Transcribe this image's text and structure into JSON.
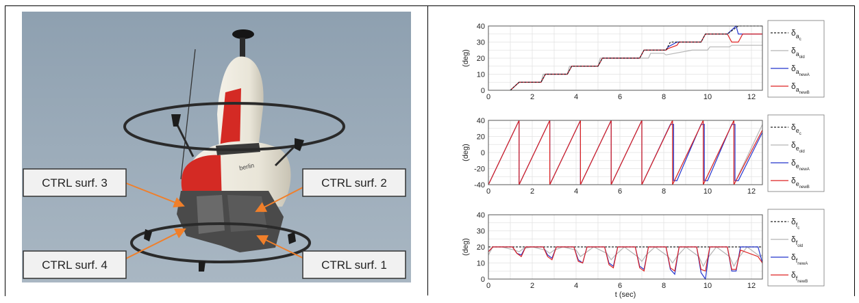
{
  "photo": {
    "callouts": [
      "CTRL surf. 3",
      "CTRL surf. 2",
      "CTRL surf. 4",
      "CTRL surf. 1"
    ],
    "logo_text": "berlin",
    "colors": {
      "sky": "#9aabb9",
      "body": "#ece8dc",
      "red": "#d42a24",
      "arrow": "#f07f2a",
      "callout_bg": "#f1f1f1"
    }
  },
  "chart_data": [
    {
      "type": "line",
      "ylabel": "(deg)",
      "xlim": [
        0,
        12.5
      ],
      "ylim": [
        0,
        40
      ],
      "xticks": [
        "0",
        "2",
        "4",
        "6",
        "8",
        "10",
        "12"
      ],
      "yticks": [
        "0",
        "10",
        "20",
        "30",
        "40"
      ],
      "grid": true,
      "legend_position": "right",
      "legend": [
        {
          "symbol": "δ",
          "sub": "a",
          "subsub": "c",
          "color": "#222222",
          "dash": "3,2"
        },
        {
          "symbol": "δ",
          "sub": "a",
          "subsub": "old",
          "color": "#b5b5b5",
          "dash": ""
        },
        {
          "symbol": "δ",
          "sub": "a",
          "subsub": "newA",
          "color": "#2233cc",
          "dash": ""
        },
        {
          "symbol": "δ",
          "sub": "a",
          "subsub": "newB",
          "color": "#dd2222",
          "dash": ""
        }
      ],
      "series": [
        {
          "color": "#b5b5b5",
          "x": [
            1,
            1.4,
            1.5,
            2.4,
            2.5,
            3.6,
            3.7,
            5,
            5.1,
            6,
            6.1,
            7.3,
            7.4,
            8,
            8.1,
            9.3,
            9.4,
            10,
            10.1,
            11,
            11.1,
            12.5
          ],
          "y": [
            0,
            5,
            5,
            5,
            10,
            10,
            15,
            15,
            20,
            20,
            20,
            20,
            23,
            23,
            22,
            25,
            25,
            25,
            27,
            27,
            28,
            28
          ]
        },
        {
          "color": "#2233cc",
          "x": [
            1,
            1.4,
            1.5,
            2.4,
            2.6,
            3.6,
            3.8,
            5,
            5.2,
            6.9,
            7.1,
            8.1,
            8.2,
            8.6,
            8.7,
            9.7,
            9.9,
            10.9,
            11.3,
            11.4,
            12.5
          ],
          "y": [
            0,
            5,
            5,
            5,
            10,
            10,
            15,
            15,
            20,
            20,
            25,
            25,
            27,
            30,
            30,
            30,
            35,
            35,
            40,
            35,
            35
          ]
        },
        {
          "color": "#dd2222",
          "x": [
            1,
            1.4,
            1.5,
            2.4,
            2.6,
            3.6,
            3.8,
            5,
            5.2,
            6.9,
            7.1,
            8.1,
            8.2,
            8.6,
            8.7,
            9.7,
            9.9,
            10.9,
            11.1,
            11.4,
            11.6,
            12.5
          ],
          "y": [
            0,
            5,
            5,
            5,
            10,
            10,
            15,
            15,
            20,
            20,
            25,
            25,
            26,
            28,
            30,
            30,
            35,
            35,
            30,
            30,
            35,
            35
          ]
        },
        {
          "color": "#222222",
          "dash": "3,2",
          "x": [
            1,
            1.4,
            1.5,
            2.4,
            2.6,
            3.6,
            3.8,
            5,
            5.2,
            6.9,
            7.1,
            8.1,
            8.3,
            9.7,
            9.9,
            10.9,
            11.4,
            12.5
          ],
          "y": [
            0,
            5,
            5,
            5,
            10,
            10,
            15,
            15,
            20,
            20,
            25,
            25,
            30,
            30,
            35,
            35,
            40,
            40
          ]
        }
      ]
    },
    {
      "type": "line",
      "ylabel": "(deg)",
      "xlim": [
        0,
        12.5
      ],
      "ylim": [
        -40,
        40
      ],
      "xticks": [
        "0",
        "2",
        "4",
        "6",
        "8",
        "10",
        "12"
      ],
      "yticks": [
        "-40",
        "-20",
        "0",
        "20",
        "40"
      ],
      "grid": true,
      "legend_position": "right",
      "legend": [
        {
          "symbol": "δ",
          "sub": "e",
          "subsub": "c",
          "color": "#222222",
          "dash": "3,2"
        },
        {
          "symbol": "δ",
          "sub": "e",
          "subsub": "old",
          "color": "#b5b5b5",
          "dash": ""
        },
        {
          "symbol": "δ",
          "sub": "e",
          "subsub": "newA",
          "color": "#2233cc",
          "dash": ""
        },
        {
          "symbol": "δ",
          "sub": "e",
          "subsub": "newB",
          "color": "#dd2222",
          "dash": ""
        }
      ],
      "series": [
        {
          "color": "#b5b5b5",
          "x": [
            0,
            1.4,
            1.4,
            2.8,
            2.8,
            4.2,
            4.2,
            5.6,
            5.6,
            7,
            7,
            8.4,
            8.4,
            9.8,
            9.8,
            11.2,
            11.2,
            12.5
          ],
          "y": [
            -40,
            40,
            -40,
            40,
            -40,
            40,
            -40,
            40,
            -40,
            40,
            -40,
            40,
            -40,
            40,
            -40,
            40,
            -40,
            35
          ]
        },
        {
          "color": "#2233cc",
          "x": [
            0,
            1.4,
            1.4,
            2.8,
            2.8,
            4.2,
            4.2,
            5.6,
            5.6,
            7,
            7,
            8.3,
            8.45,
            8.45,
            8.6,
            9.7,
            9.85,
            9.85,
            10,
            11.1,
            11.25,
            11.25,
            11.4,
            12.5
          ],
          "y": [
            -40,
            40,
            -40,
            40,
            -40,
            40,
            -40,
            40,
            -40,
            40,
            -40,
            35,
            35,
            -35,
            -35,
            35,
            35,
            -35,
            -35,
            35,
            35,
            -35,
            -35,
            25
          ]
        },
        {
          "color": "#dd2222",
          "x": [
            0,
            1.4,
            1.4,
            2.8,
            2.8,
            4.2,
            4.2,
            5.6,
            5.6,
            7,
            7,
            8.4,
            8.4,
            9.8,
            9.8,
            11.2,
            11.2,
            12.5
          ],
          "y": [
            -40,
            40,
            -40,
            40,
            -40,
            40,
            -40,
            40,
            -40,
            40,
            -40,
            40,
            -40,
            40,
            -40,
            40,
            -40,
            28
          ]
        }
      ]
    },
    {
      "type": "line",
      "ylabel": "(deg)",
      "xlabel": "t (sec)",
      "xlim": [
        0,
        12.5
      ],
      "ylim": [
        0,
        40
      ],
      "xticks": [
        "0",
        "2",
        "4",
        "6",
        "8",
        "10",
        "12"
      ],
      "yticks": [
        "0",
        "10",
        "20",
        "30",
        "40"
      ],
      "grid": true,
      "legend_position": "right",
      "legend": [
        {
          "symbol": "δ",
          "sub": "f",
          "subsub": "c",
          "color": "#222222",
          "dash": "3,2"
        },
        {
          "symbol": "δ",
          "sub": "f",
          "subsub": "old",
          "color": "#b5b5b5",
          "dash": ""
        },
        {
          "symbol": "δ",
          "sub": "f",
          "subsub": "newA",
          "color": "#2233cc",
          "dash": ""
        },
        {
          "symbol": "δ",
          "sub": "f",
          "subsub": "newB",
          "color": "#dd2222",
          "dash": ""
        }
      ],
      "series": [
        {
          "color": "#222222",
          "dash": "3,2",
          "x": [
            0,
            12.5
          ],
          "y": [
            20,
            20
          ]
        },
        {
          "color": "#b5b5b5",
          "x": [
            0,
            0.2,
            0.6,
            1.2,
            1.4,
            1.6,
            2,
            2.6,
            2.8,
            3,
            3.4,
            4,
            4.2,
            4.4,
            4.8,
            5.4,
            5.6,
            5.8,
            6.2,
            6.8,
            7,
            7.2,
            7.6,
            8.2,
            8.4,
            8.6,
            9,
            9.6,
            9.8,
            10,
            10.4,
            11,
            11.2,
            11.4,
            11.8,
            12.4,
            12.5
          ],
          "y": [
            15,
            20,
            20,
            18,
            17,
            19,
            20,
            18,
            16,
            18,
            20,
            18,
            14,
            16,
            20,
            16,
            12,
            15,
            20,
            14,
            11,
            15,
            20,
            14,
            10,
            14,
            20,
            14,
            8,
            13,
            20,
            14,
            8,
            13,
            20,
            14,
            15
          ]
        },
        {
          "color": "#2233cc",
          "x": [
            0,
            0.2,
            1.1,
            1.3,
            1.5,
            1.7,
            2.5,
            2.7,
            2.9,
            3.1,
            3.9,
            4.1,
            4.3,
            4.5,
            5.3,
            5.5,
            5.7,
            5.9,
            6.7,
            6.9,
            7.1,
            7.3,
            8.1,
            8.3,
            8.5,
            8.7,
            9.5,
            9.7,
            9.9,
            10.1,
            10.9,
            11.1,
            11.3,
            11.5,
            12.3,
            12.5
          ],
          "y": [
            17,
            20,
            20,
            16,
            15,
            20,
            20,
            15,
            13,
            20,
            20,
            12,
            10,
            20,
            20,
            10,
            8,
            20,
            20,
            8,
            6,
            20,
            20,
            6,
            3,
            20,
            20,
            4,
            0,
            20,
            20,
            5,
            5,
            20,
            20,
            10
          ]
        },
        {
          "color": "#dd2222",
          "x": [
            0,
            0.2,
            1.1,
            1.3,
            1.5,
            1.7,
            2.5,
            2.7,
            2.9,
            3.1,
            3.9,
            4.1,
            4.3,
            4.5,
            5.3,
            5.5,
            5.7,
            5.9,
            6.7,
            6.9,
            7.1,
            7.3,
            8.1,
            8.3,
            8.5,
            8.7,
            9.5,
            9.7,
            9.9,
            10.1,
            10.9,
            11.1,
            11.3,
            11.5,
            12.3,
            12.5
          ],
          "y": [
            17,
            20,
            20,
            16,
            14,
            20,
            20,
            14,
            12,
            20,
            20,
            11,
            10,
            20,
            20,
            9,
            7,
            20,
            20,
            7,
            5,
            20,
            20,
            7,
            5,
            20,
            20,
            6,
            5,
            20,
            20,
            6,
            6,
            18,
            14,
            10
          ]
        }
      ]
    }
  ]
}
